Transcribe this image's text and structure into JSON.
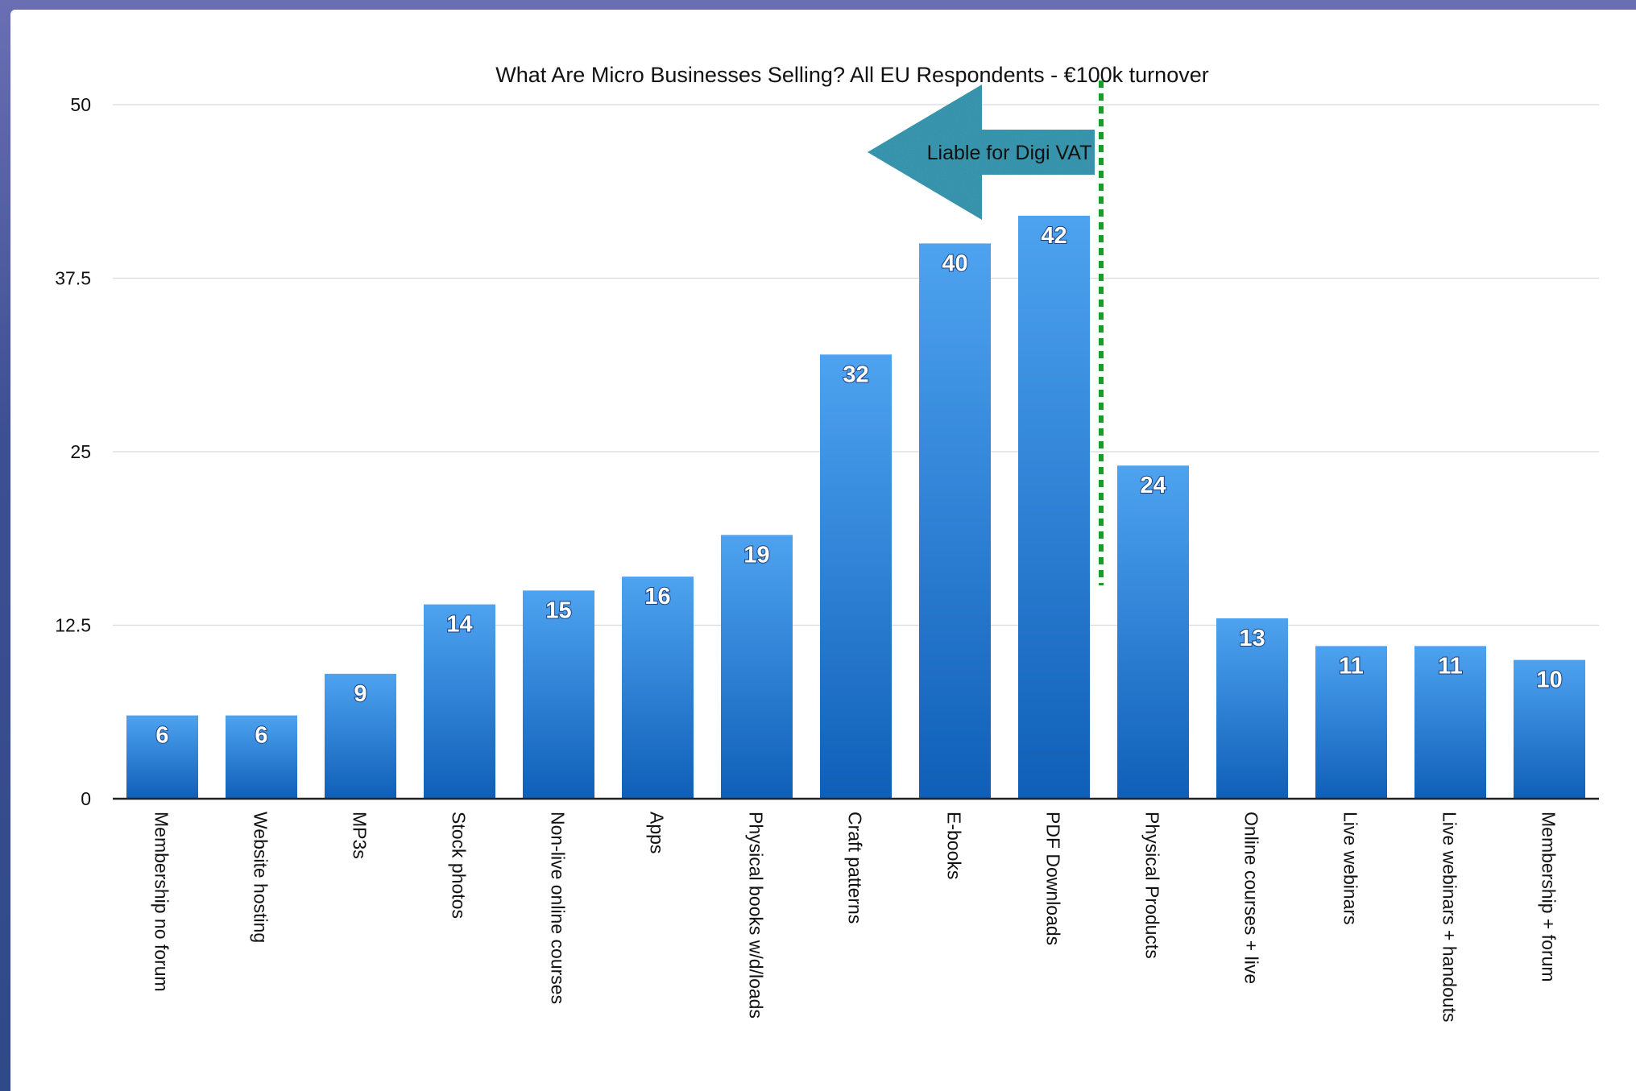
{
  "chart_data": {
    "type": "bar",
    "title": "What Are Micro Businesses Selling? All EU Respondents - €100k turnover",
    "xlabel": "",
    "ylabel": "",
    "ylim": [
      0,
      50
    ],
    "yticks": [
      "0",
      "12.5",
      "25",
      "37.5",
      "50"
    ],
    "grid": true,
    "categories": [
      "Membership no forum",
      "Website hosting",
      "MP3s",
      "Stock photos",
      "Non-live online courses",
      "Apps",
      "Physical books w/d/loads",
      "Craft patterns",
      "E-books",
      "PDF Downloads",
      "Physical Products",
      "Online courses + live",
      "Live webinars",
      "Live webinars + handouts",
      "Membership + forum"
    ],
    "values": [
      6,
      6,
      9,
      14,
      15,
      16,
      19,
      32,
      40,
      42,
      24,
      13,
      11,
      11,
      10
    ],
    "data_labels": [
      "6",
      "6",
      "9",
      "14",
      "15",
      "16",
      "19",
      "32",
      "40",
      "42",
      "24",
      "13",
      "11",
      "11",
      "10"
    ],
    "bar_color": "#2a86e0",
    "annotations": [
      {
        "text": "Liable for Digi VAT",
        "kind": "arrow-left",
        "color": "#2e8ca6"
      },
      {
        "kind": "divider",
        "after_category": "PDF Downloads",
        "style": "dotted",
        "color": "#1e9a2a"
      }
    ]
  }
}
